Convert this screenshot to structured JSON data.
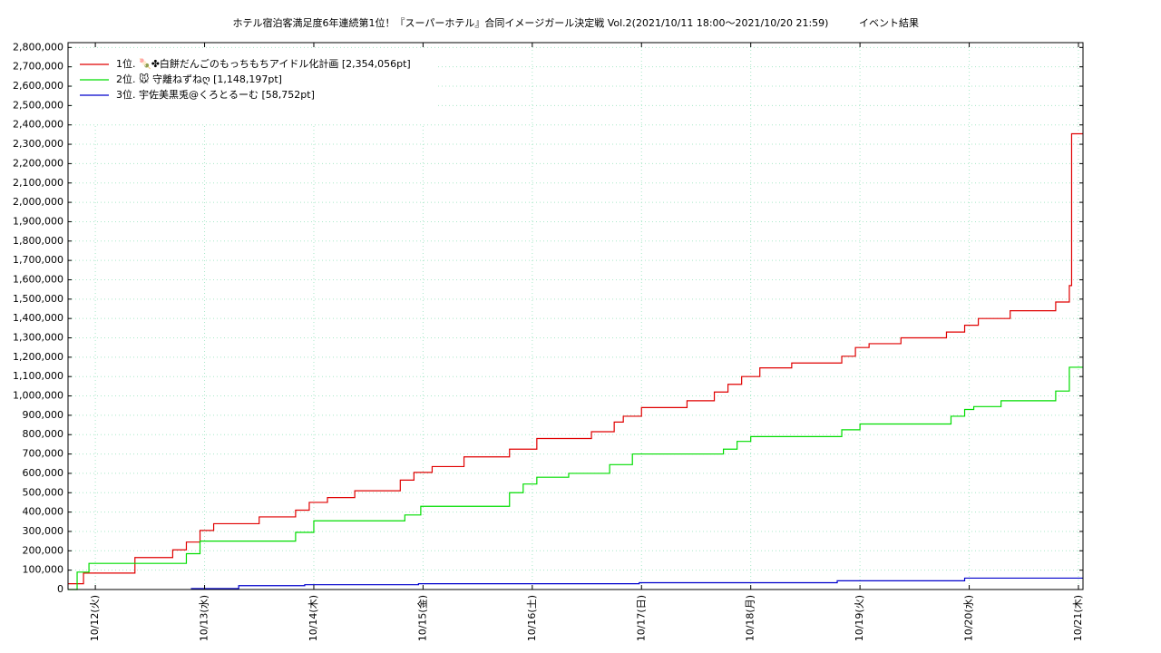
{
  "chart_data": {
    "type": "step-line",
    "title": "ホテル宿泊客満足度6年連続第1位！『スーパーホテル』合同イメージガール決定戦 Vol.2(2021/10/11 18:00～2021/10/20 21:59)",
    "subtitle": "イベント結果",
    "xlim": [
      0,
      223
    ],
    "xticks": [
      {
        "value": 6,
        "label": "10/12(火)"
      },
      {
        "value": 30,
        "label": "10/13(水)"
      },
      {
        "value": 54,
        "label": "10/14(木)"
      },
      {
        "value": 78,
        "label": "10/15(金)"
      },
      {
        "value": 102,
        "label": "10/16(土)"
      },
      {
        "value": 126,
        "label": "10/17(日)"
      },
      {
        "value": 150,
        "label": "10/18(月)"
      },
      {
        "value": 174,
        "label": "10/19(火)"
      },
      {
        "value": 198,
        "label": "10/20(水)"
      },
      {
        "value": 222,
        "label": "10/21(木)"
      }
    ],
    "ylim": [
      0,
      2825000
    ],
    "yticks": [
      0,
      {
        "value": 100000,
        "label": "100,000"
      },
      {
        "value": 200000,
        "label": "200,000"
      },
      {
        "value": 300000,
        "label": "300,000"
      },
      {
        "value": 400000,
        "label": "400,000"
      },
      {
        "value": 500000,
        "label": "500,000"
      },
      {
        "value": 600000,
        "label": "600,000"
      },
      {
        "value": 700000,
        "label": "700,000"
      },
      {
        "value": 800000,
        "label": "800,000"
      },
      {
        "value": 900000,
        "label": "900,000"
      },
      {
        "value": 1000000,
        "label": "1,000,000"
      },
      {
        "value": 1100000,
        "label": "1,100,000"
      },
      {
        "value": 1200000,
        "label": "1,200,000"
      },
      {
        "value": 1300000,
        "label": "1,300,000"
      },
      {
        "value": 1400000,
        "label": "1,400,000"
      },
      {
        "value": 1500000,
        "label": "1,500,000"
      },
      {
        "value": 1600000,
        "label": "1,600,000"
      },
      {
        "value": 1700000,
        "label": "1,700,000"
      },
      {
        "value": 1800000,
        "label": "1,800,000"
      },
      {
        "value": 1900000,
        "label": "1,900,000"
      },
      {
        "value": 2000000,
        "label": "2,000,000"
      },
      {
        "value": 2100000,
        "label": "2,100,000"
      },
      {
        "value": 2200000,
        "label": "2,200,000"
      },
      {
        "value": 2300000,
        "label": "2,300,000"
      },
      {
        "value": 2400000,
        "label": "2,400,000"
      },
      {
        "value": 2500000,
        "label": "2,500,000"
      },
      {
        "value": 2600000,
        "label": "2,600,000"
      },
      {
        "value": 2700000,
        "label": "2,700,000"
      },
      {
        "value": 2800000,
        "label": "2,800,000"
      }
    ],
    "grid": true,
    "series": [
      {
        "name": "1位. 🍡✤白餅だんごのもっちもちアイドル化計画 [2,354,056pt]",
        "color": "#e00000",
        "x": [
          0,
          3.4,
          14.7,
          23,
          26,
          29,
          32,
          42,
          50,
          53,
          57,
          63,
          73,
          76,
          80,
          87,
          97,
          103,
          115,
          120,
          122,
          126,
          136,
          142,
          145,
          148,
          152,
          159,
          170,
          173,
          176,
          183,
          193,
          197,
          200,
          207,
          217,
          220,
          220.5,
          223
        ],
        "values": [
          30000,
          85000,
          165000,
          205000,
          245000,
          305000,
          340000,
          375000,
          410000,
          450000,
          475000,
          510000,
          565000,
          605000,
          635000,
          685000,
          725000,
          780000,
          815000,
          865000,
          895000,
          940000,
          975000,
          1020000,
          1060000,
          1100000,
          1145000,
          1170000,
          1205000,
          1250000,
          1270000,
          1300000,
          1330000,
          1365000,
          1400000,
          1440000,
          1485000,
          1570000,
          2354056,
          2354056
        ]
      },
      {
        "name": "2位. 🐭 守離ねずねღ [1,148,197pt]",
        "color": "#00dd00",
        "x": [
          0,
          2,
          4.6,
          26,
          29,
          50,
          54,
          74,
          77.5,
          97,
          100,
          103,
          110,
          119,
          124,
          144,
          147,
          150,
          170,
          174,
          194,
          197,
          199,
          205,
          217,
          220,
          223
        ],
        "values": [
          0,
          90000,
          135000,
          185000,
          250000,
          295000,
          355000,
          385000,
          430000,
          500000,
          545000,
          580000,
          600000,
          645000,
          700000,
          725000,
          765000,
          790000,
          825000,
          855000,
          895000,
          930000,
          945000,
          975000,
          1025000,
          1148197,
          1148197
        ]
      },
      {
        "name": "3位. 宇佐美黒兎@くろとるーむ [58,752pt]",
        "color": "#0000cc",
        "x": [
          27,
          37.5,
          52,
          77,
          125.5,
          169,
          197,
          223
        ],
        "values": [
          5000,
          20000,
          25000,
          30000,
          35000,
          45000,
          58752,
          58752
        ]
      }
    ]
  }
}
